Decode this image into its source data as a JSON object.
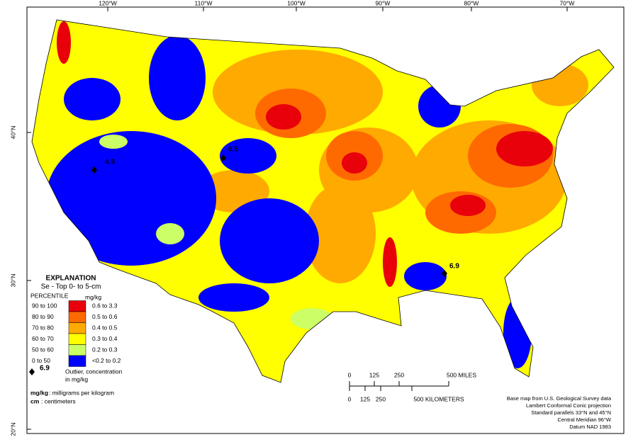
{
  "graticule": {
    "top": [
      "120°W",
      "110°W",
      "100°W",
      "90°W",
      "80°W",
      "70°W"
    ],
    "left": [
      "40°N",
      "30°N",
      "20°N"
    ]
  },
  "outliers": [
    "4.9",
    "6.5",
    "6.9"
  ],
  "legend": {
    "title": "EXPLANATION",
    "subtitle": "Se - Top 0- to 5-cm",
    "percentile_header": "PERCENTILE",
    "unit_header": "mg/kg",
    "rows": [
      {
        "percentile": "90 to 100",
        "range": "0.6 to 3.3",
        "color": "#e8000b"
      },
      {
        "percentile": "80 to 90",
        "range": "0.5 to 0.6",
        "color": "#ff6a00"
      },
      {
        "percentile": "70 to 80",
        "range": "0.4 to 0.5",
        "color": "#ffaa00"
      },
      {
        "percentile": "60 to 70",
        "range": "0.3 to 0.4",
        "color": "#ffff00"
      },
      {
        "percentile": "50 to 60",
        "range": "0.2 to 0.3",
        "color": "#ccff66"
      },
      {
        "percentile": "0 to 50",
        "range": "<0.2 to 0.2",
        "color": "#0000ff"
      }
    ],
    "outlier_value": "6.9",
    "outlier_text": [
      "Outlier, concentration",
      "in mg/kg"
    ],
    "notes": [
      {
        "term": "mg/kg",
        "definition": ": milligrams per kilogram"
      },
      {
        "term": "cm",
        "definition": ": centimeters"
      }
    ]
  },
  "scale": {
    "miles": [
      "0",
      "125",
      "250",
      "500 MILES"
    ],
    "km": [
      "0",
      "125",
      "250",
      "500 KILOMETERS"
    ]
  },
  "credits": [
    "Base map from U.S. Geological Survey data",
    "Lambert Conformal Conic projection",
    "Standard parallels 33°N and 45°N",
    "Central Meridian 96°W",
    "Datum NAD 1983"
  ]
}
